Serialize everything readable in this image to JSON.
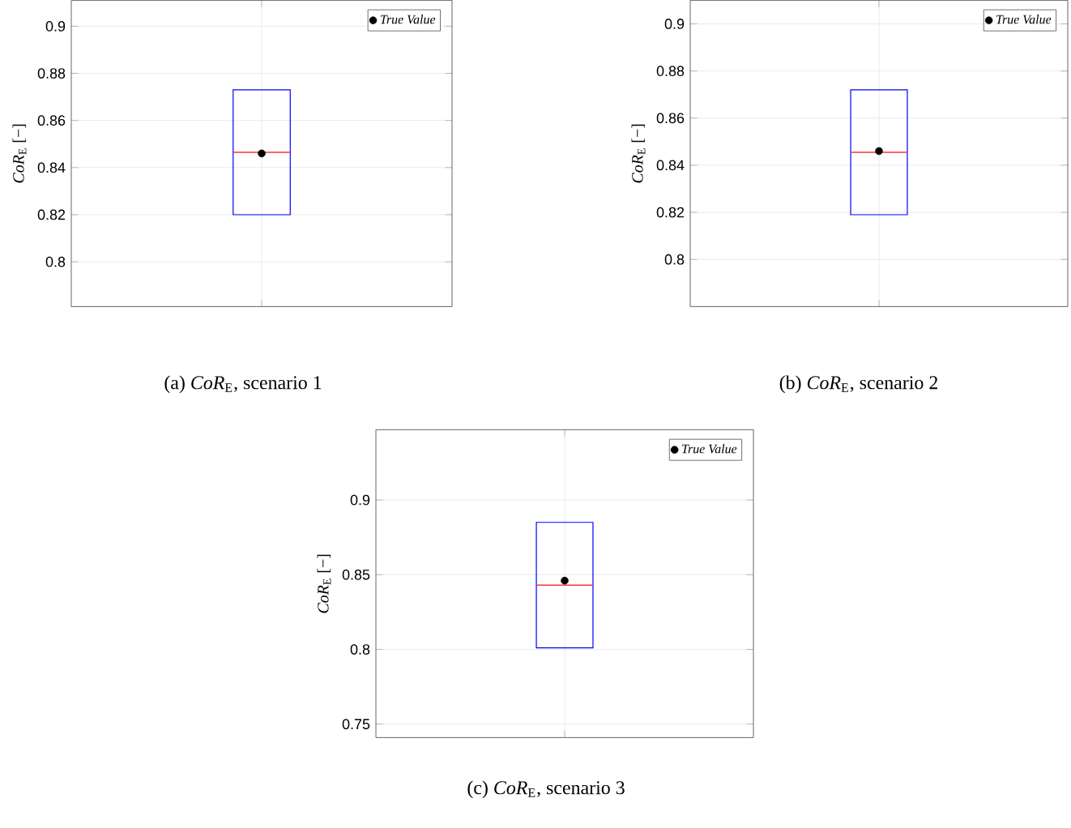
{
  "chart_data": [
    {
      "type": "box",
      "title": "(a) *CoR*$_{E}$, scenario 1",
      "ylabel": "*CoR*$_{E}$ [−]",
      "categories": [
        null
      ],
      "ylim": [
        0.781,
        0.911
      ],
      "yticks": [
        0.8,
        0.82,
        0.84,
        0.86,
        0.88,
        0.9
      ],
      "grid": true,
      "legend": "top right",
      "tick_labels": "y",
      "series": [
        {
          "type": "box",
          "color": "#0000ff",
          "boxes": [
            {
              "low": 0.82,
              "q1": 0.82,
              "median": 0.8465,
              "q3": 0.873,
              "high": 0.873
            }
          ]
        },
        {
          "type": "scatter",
          "name": "True Value",
          "color": "#000000",
          "values": [
            0.846
          ]
        }
      ]
    },
    {
      "type": "box",
      "title": "(b) *CoR*$_{E}$, scenario 2",
      "ylabel": "*CoR*$_{E}$ [−]",
      "categories": [
        null
      ],
      "ylim": [
        0.78,
        0.91
      ],
      "yticks": [
        0.8,
        0.82,
        0.84,
        0.86,
        0.88,
        0.9
      ],
      "grid": true,
      "legend": "top right",
      "tick_labels": "y",
      "series": [
        {
          "type": "box",
          "color": "#0000ff",
          "boxes": [
            {
              "low": 0.819,
              "q1": 0.819,
              "median": 0.8455,
              "q3": 0.872,
              "high": 0.872
            }
          ]
        },
        {
          "type": "scatter",
          "name": "True Value",
          "color": "#000000",
          "values": [
            0.846
          ]
        }
      ]
    },
    {
      "type": "box",
      "title": "(c) *CoR*$_{E}$, scenario 3",
      "ylabel": "*CoR*$_{E}$ [−]",
      "categories": [
        null
      ],
      "ylim": [
        0.741,
        0.947
      ],
      "yticks": [
        0.75,
        0.8,
        0.85,
        0.9
      ],
      "grid": true,
      "legend": "top right",
      "tick_labels": "y",
      "series": [
        {
          "type": "box",
          "color": "#0000ff",
          "boxes": [
            {
              "low": 0.801,
              "q1": 0.801,
              "median": 0.843,
              "q3": 0.885,
              "high": 0.885
            }
          ]
        },
        {
          "type": "scatter",
          "name": "True Value",
          "color": "#000000",
          "values": [
            0.846
          ]
        }
      ]
    }
  ]
}
